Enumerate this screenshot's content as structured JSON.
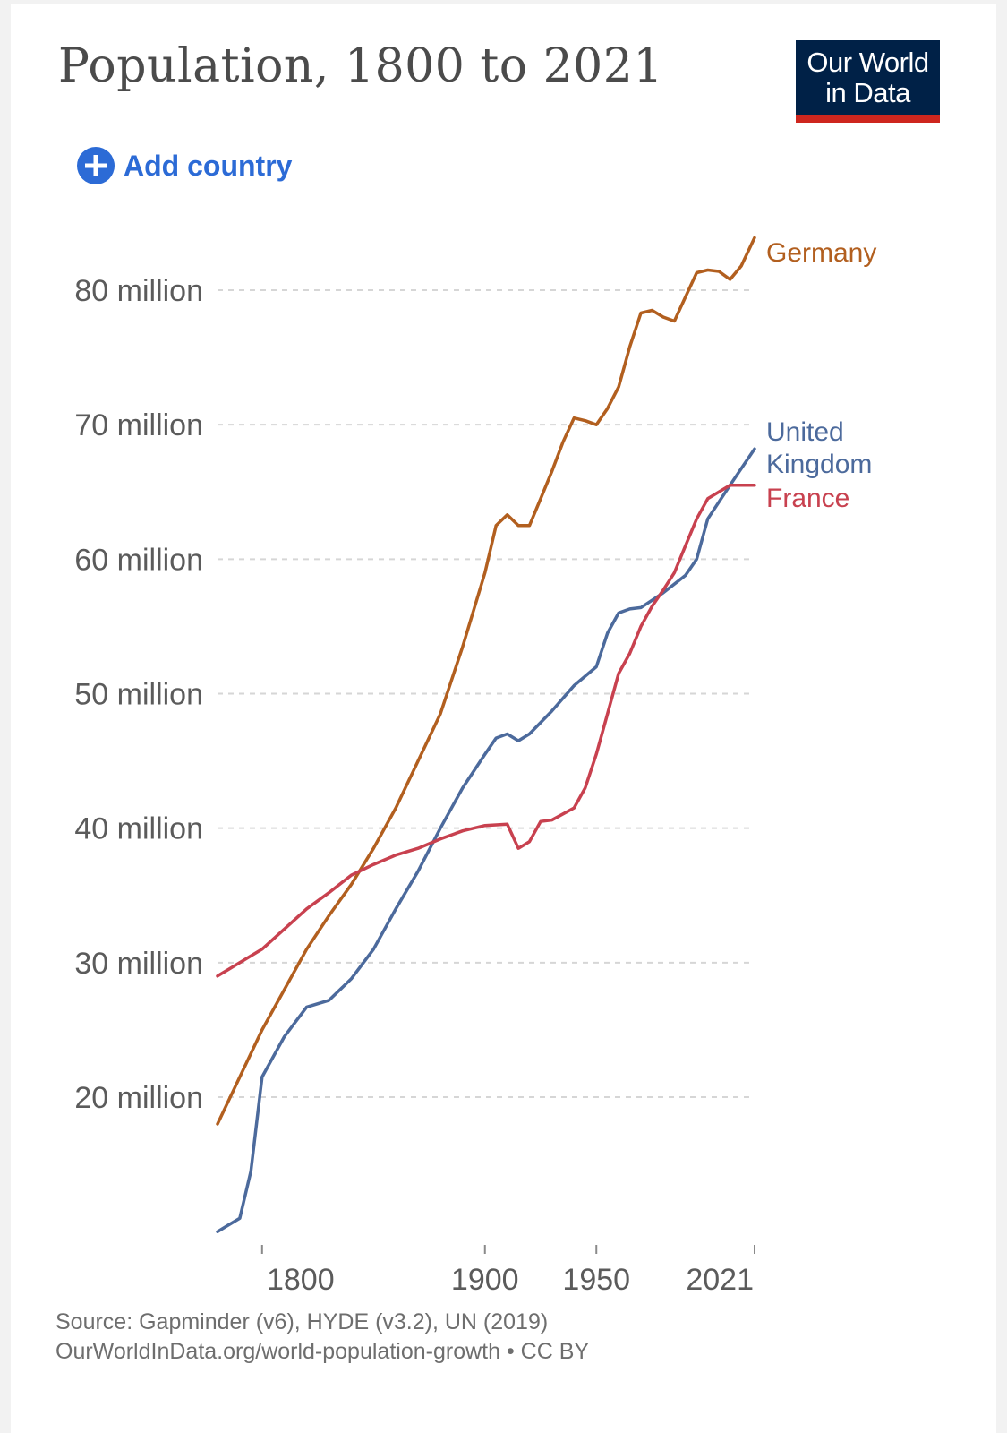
{
  "header": {
    "title": "Population, 1800 to 2021",
    "logo_line1": "Our World",
    "logo_line2": "in Data"
  },
  "controls": {
    "add_country_label": "Add country"
  },
  "footer": {
    "source_line": "Source: Gapminder (v6), HYDE (v3.2), UN (2019)",
    "url_line": "OurWorldInData.org/world-population-growth • CC BY"
  },
  "chart_data": {
    "type": "line",
    "title": "Population, 1800 to 2021",
    "xlabel": "",
    "ylabel": "",
    "xlim": [
      1780,
      2021
    ],
    "ylim": [
      10000000,
      84000000
    ],
    "grid": true,
    "x_ticks": [
      {
        "value": 1800,
        "label": "1800"
      },
      {
        "value": 1900,
        "label": "1900"
      },
      {
        "value": 1950,
        "label": "1950"
      },
      {
        "value": 2021,
        "label": "2021"
      }
    ],
    "y_ticks": [
      {
        "value": 20000000,
        "label": "20 million"
      },
      {
        "value": 30000000,
        "label": "30 million"
      },
      {
        "value": 40000000,
        "label": "40 million"
      },
      {
        "value": 50000000,
        "label": "50 million"
      },
      {
        "value": 60000000,
        "label": "60 million"
      },
      {
        "value": 70000000,
        "label": "70 million"
      },
      {
        "value": 80000000,
        "label": "80 million"
      }
    ],
    "series": [
      {
        "name": "Germany",
        "label_lines": [
          "Germany"
        ],
        "color": "#b25f1f",
        "points": [
          [
            1780,
            18000000
          ],
          [
            1790,
            21500000
          ],
          [
            1800,
            25000000
          ],
          [
            1810,
            28000000
          ],
          [
            1820,
            31000000
          ],
          [
            1830,
            33500000
          ],
          [
            1840,
            35800000
          ],
          [
            1850,
            38500000
          ],
          [
            1860,
            41500000
          ],
          [
            1870,
            45000000
          ],
          [
            1880,
            48500000
          ],
          [
            1890,
            53500000
          ],
          [
            1900,
            59000000
          ],
          [
            1905,
            62500000
          ],
          [
            1910,
            63300000
          ],
          [
            1915,
            62500000
          ],
          [
            1920,
            62500000
          ],
          [
            1925,
            64500000
          ],
          [
            1930,
            66500000
          ],
          [
            1935,
            68700000
          ],
          [
            1940,
            70500000
          ],
          [
            1945,
            70300000
          ],
          [
            1950,
            70000000
          ],
          [
            1955,
            71200000
          ],
          [
            1960,
            72800000
          ],
          [
            1965,
            75800000
          ],
          [
            1970,
            78300000
          ],
          [
            1975,
            78500000
          ],
          [
            1980,
            78000000
          ],
          [
            1985,
            77700000
          ],
          [
            1990,
            79500000
          ],
          [
            1995,
            81300000
          ],
          [
            2000,
            81500000
          ],
          [
            2005,
            81400000
          ],
          [
            2010,
            80800000
          ],
          [
            2015,
            81800000
          ],
          [
            2021,
            83900000
          ]
        ]
      },
      {
        "name": "United Kingdom",
        "label_lines": [
          "United",
          "Kingdom"
        ],
        "color": "#4c6a9c",
        "points": [
          [
            1780,
            10000000
          ],
          [
            1790,
            11000000
          ],
          [
            1795,
            14500000
          ],
          [
            1800,
            21500000
          ],
          [
            1810,
            24500000
          ],
          [
            1820,
            26700000
          ],
          [
            1830,
            27200000
          ],
          [
            1840,
            28800000
          ],
          [
            1850,
            31000000
          ],
          [
            1860,
            34000000
          ],
          [
            1870,
            36800000
          ],
          [
            1880,
            40000000
          ],
          [
            1890,
            43000000
          ],
          [
            1900,
            45500000
          ],
          [
            1905,
            46700000
          ],
          [
            1910,
            47000000
          ],
          [
            1915,
            46500000
          ],
          [
            1920,
            47000000
          ],
          [
            1930,
            48700000
          ],
          [
            1940,
            50600000
          ],
          [
            1950,
            52000000
          ],
          [
            1955,
            54500000
          ],
          [
            1960,
            56000000
          ],
          [
            1965,
            56300000
          ],
          [
            1970,
            56400000
          ],
          [
            1980,
            57500000
          ],
          [
            1990,
            58800000
          ],
          [
            1995,
            60000000
          ],
          [
            2000,
            63000000
          ],
          [
            2010,
            65500000
          ],
          [
            2021,
            68200000
          ]
        ]
      },
      {
        "name": "France",
        "label_lines": [
          "France"
        ],
        "color": "#c8414f",
        "points": [
          [
            1780,
            29000000
          ],
          [
            1790,
            30000000
          ],
          [
            1800,
            31000000
          ],
          [
            1810,
            32500000
          ],
          [
            1820,
            34000000
          ],
          [
            1830,
            35200000
          ],
          [
            1840,
            36500000
          ],
          [
            1850,
            37300000
          ],
          [
            1860,
            38000000
          ],
          [
            1870,
            38500000
          ],
          [
            1880,
            39200000
          ],
          [
            1890,
            39800000
          ],
          [
            1900,
            40200000
          ],
          [
            1910,
            40300000
          ],
          [
            1915,
            38500000
          ],
          [
            1920,
            39000000
          ],
          [
            1925,
            40500000
          ],
          [
            1930,
            40600000
          ],
          [
            1940,
            41500000
          ],
          [
            1945,
            43000000
          ],
          [
            1950,
            45500000
          ],
          [
            1955,
            48500000
          ],
          [
            1960,
            51500000
          ],
          [
            1965,
            53000000
          ],
          [
            1970,
            55000000
          ],
          [
            1975,
            56500000
          ],
          [
            1980,
            57700000
          ],
          [
            1985,
            59000000
          ],
          [
            1990,
            61000000
          ],
          [
            1995,
            63000000
          ],
          [
            2000,
            64500000
          ],
          [
            2010,
            65500000
          ],
          [
            2021,
            65500000
          ]
        ]
      }
    ]
  }
}
